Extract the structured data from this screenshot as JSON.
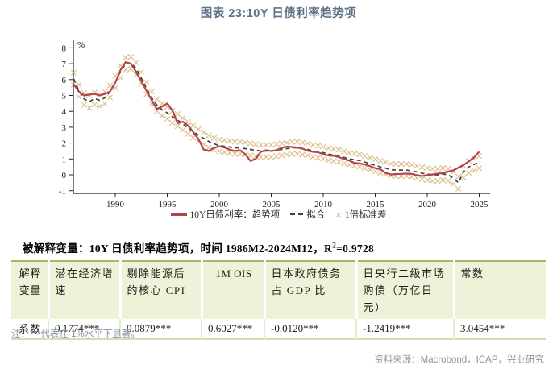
{
  "figure": {
    "title": "图表 23:10Y 日债利率趋势项",
    "caption": {
      "prefix": "被解释变量：10Y 日债利率趋势项，时间 1986M2-2024M12，R",
      "sup": "2",
      "suffix": "=0.9728"
    },
    "note": "注：***代表在 1%水平下显著。",
    "source": "资料来源：Macrobond，ICAP，兴业研究"
  },
  "table": {
    "headers": [
      "解释变量",
      "潜在经济增速",
      "剔除能源后的核心 CPI",
      "1M OIS",
      "日本政府债务占 GDP 比",
      "日央行二级市场购债（万亿日元）",
      "常数"
    ],
    "row": [
      "系数",
      "0.1774***",
      "0.0879***",
      "0.6027***",
      "-0.0120***",
      "-1.2419***",
      "3.0454***"
    ]
  },
  "colors": {
    "title_text": "#5d7186",
    "trend_line": "#b5434d",
    "fit_line": "#46433a",
    "band_marker": "#dcbd86",
    "table_header_bg": "#edf2d8",
    "table_border": "#a0ba70",
    "note_text": "#8795a9",
    "source_text": "#8f949c"
  },
  "chart_data": {
    "type": "line",
    "title": "图表 23:10Y 日债利率趋势项",
    "xlabel": "",
    "ylabel": "%",
    "ylim": [
      -1,
      8
    ],
    "yticks": [
      -1,
      0,
      1,
      2,
      3,
      4,
      5,
      6,
      7,
      8
    ],
    "xticks": [
      1990,
      1995,
      2000,
      2005,
      2010,
      2015,
      2020,
      2025
    ],
    "legend_position": "bottom",
    "grid": false,
    "x": [
      1986,
      1986.5,
      1987,
      1987.5,
      1988,
      1988.5,
      1989,
      1989.5,
      1990,
      1990.5,
      1991,
      1991.5,
      1992,
      1992.5,
      1993,
      1993.5,
      1994,
      1994.5,
      1995,
      1995.5,
      1996,
      1996.5,
      1997,
      1997.5,
      1998,
      1998.5,
      1999,
      1999.5,
      2000,
      2000.5,
      2001,
      2001.5,
      2002,
      2002.5,
      2003,
      2003.5,
      2004,
      2004.5,
      2005,
      2005.5,
      2006,
      2006.5,
      2007,
      2007.5,
      2008,
      2008.5,
      2009,
      2009.5,
      2010,
      2010.5,
      2011,
      2011.5,
      2012,
      2012.5,
      2013,
      2013.5,
      2014,
      2014.5,
      2015,
      2015.5,
      2016,
      2016.5,
      2017,
      2017.5,
      2018,
      2018.5,
      2019,
      2019.5,
      2020,
      2020.5,
      2021,
      2021.5,
      2022,
      2022.5,
      2023,
      2023.5,
      2024,
      2024.5,
      2025
    ],
    "series": [
      {
        "name": "10Y日债利率：趋势项",
        "style": "solid-line",
        "color": "#b5434d",
        "values": [
          5.7,
          5.25,
          5.0,
          5.05,
          5.1,
          5.0,
          5.1,
          5.25,
          5.8,
          6.6,
          7.1,
          7.0,
          6.5,
          5.9,
          5.3,
          4.7,
          4.15,
          4.3,
          4.5,
          4.05,
          3.25,
          3.35,
          3.1,
          2.7,
          2.25,
          1.6,
          1.5,
          1.7,
          1.8,
          1.72,
          1.58,
          1.5,
          1.55,
          1.3,
          0.88,
          1.0,
          1.45,
          1.55,
          1.5,
          1.55,
          1.7,
          1.78,
          1.75,
          1.72,
          1.65,
          1.52,
          1.45,
          1.42,
          1.3,
          1.22,
          1.2,
          1.12,
          1.0,
          0.9,
          0.75,
          0.72,
          0.65,
          0.55,
          0.42,
          0.35,
          0.12,
          0.02,
          0.05,
          0.06,
          0.08,
          0.06,
          -0.02,
          -0.08,
          -0.02,
          0.02,
          0.08,
          0.1,
          0.2,
          0.28,
          0.45,
          0.62,
          0.85,
          1.1,
          1.45
        ]
      },
      {
        "name": "拟合",
        "style": "dashed-line",
        "color": "#46433a",
        "values": [
          6.05,
          5.3,
          4.78,
          4.6,
          4.8,
          4.7,
          4.85,
          5.25,
          5.85,
          6.5,
          7.0,
          7.05,
          6.7,
          6.1,
          5.45,
          4.85,
          4.4,
          4.1,
          3.9,
          3.65,
          3.45,
          3.2,
          2.95,
          2.72,
          2.5,
          2.3,
          2.1,
          1.95,
          1.85,
          1.8,
          1.75,
          1.7,
          1.7,
          1.65,
          1.6,
          1.55,
          1.5,
          1.5,
          1.5,
          1.55,
          1.6,
          1.65,
          1.7,
          1.7,
          1.65,
          1.6,
          1.5,
          1.45,
          1.4,
          1.3,
          1.25,
          1.2,
          1.1,
          1.0,
          0.95,
          0.9,
          0.8,
          0.7,
          0.6,
          0.5,
          0.42,
          0.32,
          0.3,
          0.3,
          0.3,
          0.25,
          0.18,
          0.1,
          0.05,
          0.0,
          0.0,
          0.05,
          0.0,
          -0.2,
          -0.5,
          0.2,
          0.5,
          0.65,
          0.8
        ]
      },
      {
        "name": "1倍标准差",
        "style": "x-markers",
        "marker": "×",
        "color": "#dcbd86",
        "band_of": "拟合",
        "sigma": 0.38
      }
    ]
  }
}
